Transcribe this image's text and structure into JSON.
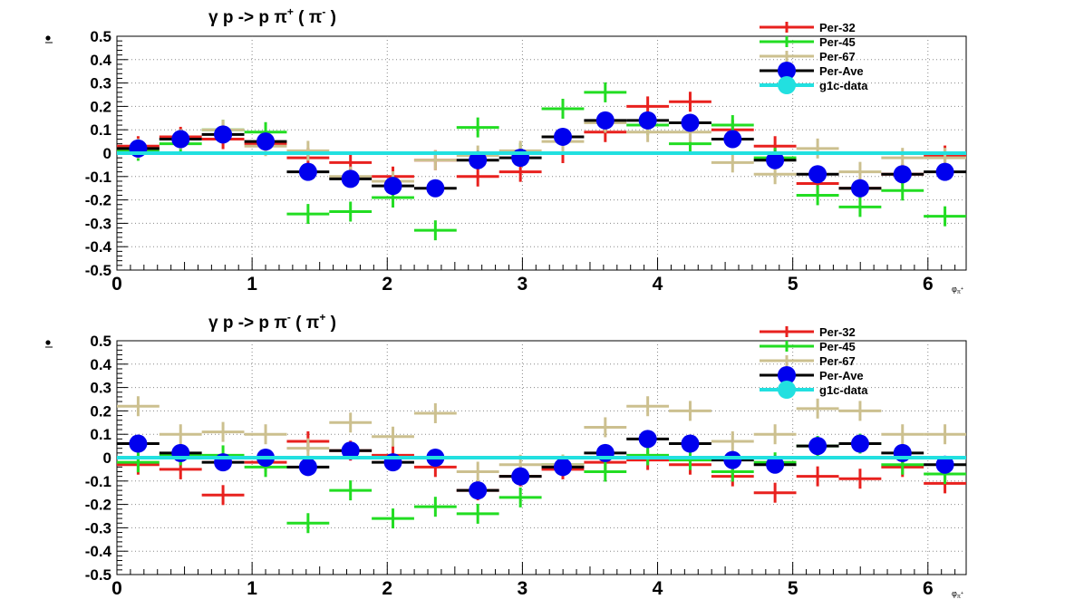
{
  "chart_data": [
    {
      "type": "scatter",
      "title": "γ p -> p π",
      "title_sup1": "+",
      "title_mid": " ( π",
      "title_sup2": "-",
      "title_end": " )",
      "xlabel": "φ",
      "xlabel_sub": "π",
      "xlabel_subsup": "+",
      "xlim": [
        0,
        6.283
      ],
      "ylim": [
        -0.5,
        0.5
      ],
      "xticks": [
        0,
        1,
        2,
        3,
        4,
        5,
        6
      ],
      "yticks": [
        -0.5,
        -0.4,
        -0.3,
        -0.2,
        -0.1,
        0,
        0.1,
        0.2,
        0.3,
        0.4,
        0.5
      ],
      "grid": true,
      "legend_position": "top-right",
      "bin_half_width": 0.157,
      "x": [
        0.157,
        0.471,
        0.785,
        1.1,
        1.414,
        1.728,
        2.042,
        2.356,
        2.67,
        2.985,
        3.299,
        3.613,
        3.927,
        4.241,
        4.555,
        4.869,
        5.184,
        5.498,
        5.812,
        6.126
      ],
      "series": [
        {
          "name": "Per-32",
          "color": "#e8211e",
          "marker": "cross",
          "values": [
            0.03,
            0.07,
            0.06,
            0.04,
            -0.02,
            -0.04,
            -0.1,
            -0.03,
            -0.1,
            -0.08,
            0.0,
            0.09,
            0.2,
            0.22,
            0.1,
            0.03,
            -0.13,
            -0.15,
            -0.09,
            -0.01
          ]
        },
        {
          "name": "Per-45",
          "color": "#22dd22",
          "marker": "cross",
          "values": [
            0.01,
            0.04,
            0.1,
            0.09,
            -0.26,
            -0.25,
            -0.19,
            -0.33,
            0.11,
            0.0,
            0.19,
            0.26,
            0.12,
            0.04,
            0.12,
            -0.02,
            -0.18,
            -0.23,
            -0.16,
            -0.27
          ]
        },
        {
          "name": "Per-67",
          "color": "#ccc08f",
          "marker": "cross",
          "values": [
            0.02,
            0.06,
            0.1,
            0.03,
            0.01,
            -0.1,
            -0.12,
            -0.03,
            -0.01,
            0.01,
            0.05,
            0.13,
            0.09,
            0.09,
            -0.04,
            -0.09,
            0.02,
            -0.08,
            -0.02,
            -0.02
          ]
        },
        {
          "name": "Per-Ave",
          "color": "#0000ee",
          "marker": "circle",
          "values": [
            0.02,
            0.06,
            0.08,
            0.05,
            -0.08,
            -0.11,
            -0.14,
            -0.15,
            -0.03,
            -0.02,
            0.07,
            0.14,
            0.14,
            0.13,
            0.06,
            -0.03,
            -0.09,
            -0.15,
            -0.09,
            -0.08
          ]
        },
        {
          "name": "g1c-data",
          "color": "#22e0e0",
          "marker": "circle-line",
          "values": [
            0
          ]
        }
      ]
    },
    {
      "type": "scatter",
      "title": "γ p -> p π",
      "title_sup1": "-",
      "title_mid": " ( π",
      "title_sup2": "+",
      "title_end": " )",
      "xlabel": "φ",
      "xlabel_sub": "π",
      "xlabel_subsup": "+",
      "xlim": [
        0,
        6.283
      ],
      "ylim": [
        -0.5,
        0.5
      ],
      "xticks": [
        0,
        1,
        2,
        3,
        4,
        5,
        6
      ],
      "yticks": [
        -0.5,
        -0.4,
        -0.3,
        -0.2,
        -0.1,
        0,
        0.1,
        0.2,
        0.3,
        0.4,
        0.5
      ],
      "grid": true,
      "legend_position": "top-right",
      "bin_half_width": 0.157,
      "x": [
        0.157,
        0.471,
        0.785,
        1.1,
        1.414,
        1.728,
        2.042,
        2.356,
        2.67,
        2.985,
        3.299,
        3.613,
        3.927,
        4.241,
        4.555,
        4.869,
        5.184,
        5.498,
        5.812,
        6.126
      ],
      "series": [
        {
          "name": "Per-32",
          "color": "#e8211e",
          "marker": "cross",
          "values": [
            -0.03,
            -0.05,
            -0.16,
            -0.02,
            0.07,
            0.03,
            0.01,
            -0.04,
            -0.14,
            -0.08,
            -0.05,
            -0.02,
            -0.01,
            -0.03,
            -0.08,
            -0.15,
            -0.08,
            -0.09,
            -0.04,
            -0.11
          ]
        },
        {
          "name": "Per-45",
          "color": "#22dd22",
          "marker": "cross",
          "values": [
            -0.02,
            0.01,
            0.01,
            -0.04,
            -0.28,
            -0.14,
            -0.26,
            -0.21,
            -0.24,
            -0.17,
            -0.03,
            -0.06,
            0.01,
            -0.01,
            -0.06,
            -0.02,
            0.05,
            0.06,
            -0.03,
            -0.07
          ]
        },
        {
          "name": "Per-67",
          "color": "#ccc08f",
          "marker": "cross",
          "values": [
            0.22,
            0.1,
            0.11,
            0.1,
            0.04,
            0.15,
            0.09,
            0.19,
            -0.06,
            -0.03,
            -0.03,
            0.13,
            0.22,
            0.2,
            0.07,
            0.1,
            0.21,
            0.2,
            0.1,
            0.1
          ]
        },
        {
          "name": "Per-Ave",
          "color": "#0000ee",
          "marker": "circle",
          "values": [
            0.06,
            0.02,
            -0.02,
            0.0,
            -0.04,
            0.03,
            -0.02,
            0.0,
            -0.14,
            -0.08,
            -0.04,
            0.02,
            0.08,
            0.06,
            -0.01,
            -0.03,
            0.05,
            0.06,
            0.02,
            -0.03
          ]
        },
        {
          "name": "g1c-data",
          "color": "#22e0e0",
          "marker": "circle-line",
          "values": [
            0
          ]
        }
      ]
    }
  ]
}
